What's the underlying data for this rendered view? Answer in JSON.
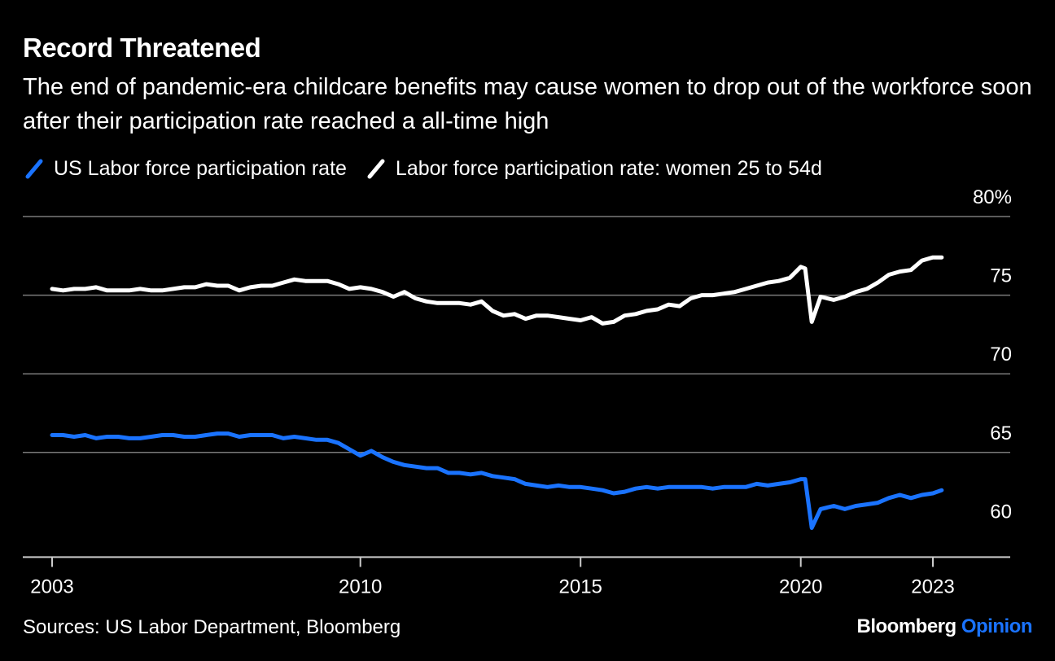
{
  "title": "Record Threatened",
  "subtitle": "The end of pandemic-era childcare benefits may cause women to drop out of the workforce soon after their participation rate reached a all-time high",
  "legend": [
    {
      "label": "US Labor force participation rate",
      "color": "#1a73ff"
    },
    {
      "label": "Labor force participation rate: women 25 to 54d",
      "color": "#ffffff"
    }
  ],
  "footer": {
    "source": "Sources: US Labor Department, Bloomberg",
    "brand_name": "Bloomberg",
    "brand_suffix": "Opinion",
    "brand_suffix_color": "#1a73ff"
  },
  "chart_data": {
    "type": "line",
    "xlabel": "",
    "ylabel": "",
    "x_ticks": [
      {
        "label": "2003",
        "value": 2003.0
      },
      {
        "label": "2010",
        "value": 2010.0
      },
      {
        "label": "2015",
        "value": 2015.0
      },
      {
        "label": "2020",
        "value": 2020.0
      },
      {
        "label": "2023",
        "value": 2023.0
      }
    ],
    "xlim": [
      2002.3,
      2024.8
    ],
    "y_ticks": [
      {
        "label": "80%",
        "value": 80
      },
      {
        "label": "75",
        "value": 75
      },
      {
        "label": "70",
        "value": 70
      },
      {
        "label": "65",
        "value": 65
      },
      {
        "label": "60",
        "value": 60
      }
    ],
    "ylim": [
      58.6,
      81.1
    ],
    "grid": true,
    "legend_position": "top-left",
    "series": [
      {
        "name": "US Labor force participation rate",
        "color": "#1a73ff",
        "points": [
          [
            2003.0,
            66.1
          ],
          [
            2003.25,
            66.1
          ],
          [
            2003.5,
            66.0
          ],
          [
            2003.75,
            66.1
          ],
          [
            2004.0,
            65.9
          ],
          [
            2004.25,
            66.0
          ],
          [
            2004.5,
            66.0
          ],
          [
            2004.75,
            65.9
          ],
          [
            2005.0,
            65.9
          ],
          [
            2005.25,
            66.0
          ],
          [
            2005.5,
            66.1
          ],
          [
            2005.75,
            66.1
          ],
          [
            2006.0,
            66.0
          ],
          [
            2006.25,
            66.0
          ],
          [
            2006.5,
            66.1
          ],
          [
            2006.75,
            66.2
          ],
          [
            2007.0,
            66.2
          ],
          [
            2007.25,
            66.0
          ],
          [
            2007.5,
            66.1
          ],
          [
            2007.75,
            66.1
          ],
          [
            2008.0,
            66.1
          ],
          [
            2008.25,
            65.9
          ],
          [
            2008.5,
            66.0
          ],
          [
            2008.75,
            65.9
          ],
          [
            2009.0,
            65.8
          ],
          [
            2009.25,
            65.8
          ],
          [
            2009.5,
            65.6
          ],
          [
            2009.75,
            65.2
          ],
          [
            2010.0,
            64.8
          ],
          [
            2010.25,
            65.1
          ],
          [
            2010.5,
            64.7
          ],
          [
            2010.75,
            64.4
          ],
          [
            2011.0,
            64.2
          ],
          [
            2011.25,
            64.1
          ],
          [
            2011.5,
            64.0
          ],
          [
            2011.75,
            64.0
          ],
          [
            2012.0,
            63.7
          ],
          [
            2012.25,
            63.7
          ],
          [
            2012.5,
            63.6
          ],
          [
            2012.75,
            63.7
          ],
          [
            2013.0,
            63.5
          ],
          [
            2013.25,
            63.4
          ],
          [
            2013.5,
            63.3
          ],
          [
            2013.75,
            63.0
          ],
          [
            2014.0,
            62.9
          ],
          [
            2014.25,
            62.8
          ],
          [
            2014.5,
            62.9
          ],
          [
            2014.75,
            62.8
          ],
          [
            2015.0,
            62.8
          ],
          [
            2015.25,
            62.7
          ],
          [
            2015.5,
            62.6
          ],
          [
            2015.75,
            62.4
          ],
          [
            2016.0,
            62.5
          ],
          [
            2016.25,
            62.7
          ],
          [
            2016.5,
            62.8
          ],
          [
            2016.75,
            62.7
          ],
          [
            2017.0,
            62.8
          ],
          [
            2017.25,
            62.8
          ],
          [
            2017.5,
            62.8
          ],
          [
            2017.75,
            62.8
          ],
          [
            2018.0,
            62.7
          ],
          [
            2018.25,
            62.8
          ],
          [
            2018.5,
            62.8
          ],
          [
            2018.75,
            62.8
          ],
          [
            2019.0,
            63.0
          ],
          [
            2019.25,
            62.9
          ],
          [
            2019.5,
            63.0
          ],
          [
            2019.75,
            63.1
          ],
          [
            2020.0,
            63.3
          ],
          [
            2020.1,
            63.3
          ],
          [
            2020.25,
            60.2
          ],
          [
            2020.45,
            61.4
          ],
          [
            2020.75,
            61.6
          ],
          [
            2021.0,
            61.4
          ],
          [
            2021.25,
            61.6
          ],
          [
            2021.5,
            61.7
          ],
          [
            2021.75,
            61.8
          ],
          [
            2022.0,
            62.1
          ],
          [
            2022.25,
            62.3
          ],
          [
            2022.5,
            62.1
          ],
          [
            2022.75,
            62.3
          ],
          [
            2023.0,
            62.4
          ],
          [
            2023.2,
            62.6
          ]
        ]
      },
      {
        "name": "Labor force participation rate: women 25 to 54d",
        "color": "#ffffff",
        "points": [
          [
            2003.0,
            75.4
          ],
          [
            2003.25,
            75.3
          ],
          [
            2003.5,
            75.4
          ],
          [
            2003.75,
            75.4
          ],
          [
            2004.0,
            75.5
          ],
          [
            2004.25,
            75.3
          ],
          [
            2004.5,
            75.3
          ],
          [
            2004.75,
            75.3
          ],
          [
            2005.0,
            75.4
          ],
          [
            2005.25,
            75.3
          ],
          [
            2005.5,
            75.3
          ],
          [
            2005.75,
            75.4
          ],
          [
            2006.0,
            75.5
          ],
          [
            2006.25,
            75.5
          ],
          [
            2006.5,
            75.7
          ],
          [
            2006.75,
            75.6
          ],
          [
            2007.0,
            75.6
          ],
          [
            2007.25,
            75.3
          ],
          [
            2007.5,
            75.5
          ],
          [
            2007.75,
            75.6
          ],
          [
            2008.0,
            75.6
          ],
          [
            2008.25,
            75.8
          ],
          [
            2008.5,
            76.0
          ],
          [
            2008.75,
            75.9
          ],
          [
            2009.0,
            75.9
          ],
          [
            2009.25,
            75.9
          ],
          [
            2009.5,
            75.7
          ],
          [
            2009.75,
            75.4
          ],
          [
            2010.0,
            75.5
          ],
          [
            2010.25,
            75.4
          ],
          [
            2010.5,
            75.2
          ],
          [
            2010.75,
            74.9
          ],
          [
            2011.0,
            75.2
          ],
          [
            2011.25,
            74.8
          ],
          [
            2011.5,
            74.6
          ],
          [
            2011.75,
            74.5
          ],
          [
            2012.0,
            74.5
          ],
          [
            2012.25,
            74.5
          ],
          [
            2012.5,
            74.4
          ],
          [
            2012.75,
            74.6
          ],
          [
            2013.0,
            74.0
          ],
          [
            2013.25,
            73.7
          ],
          [
            2013.5,
            73.8
          ],
          [
            2013.75,
            73.5
          ],
          [
            2014.0,
            73.7
          ],
          [
            2014.25,
            73.7
          ],
          [
            2014.5,
            73.6
          ],
          [
            2014.75,
            73.5
          ],
          [
            2015.0,
            73.4
          ],
          [
            2015.25,
            73.6
          ],
          [
            2015.5,
            73.2
          ],
          [
            2015.75,
            73.3
          ],
          [
            2016.0,
            73.7
          ],
          [
            2016.25,
            73.8
          ],
          [
            2016.5,
            74.0
          ],
          [
            2016.75,
            74.1
          ],
          [
            2017.0,
            74.4
          ],
          [
            2017.25,
            74.3
          ],
          [
            2017.5,
            74.8
          ],
          [
            2017.75,
            75.0
          ],
          [
            2018.0,
            75.0
          ],
          [
            2018.25,
            75.1
          ],
          [
            2018.5,
            75.2
          ],
          [
            2018.75,
            75.4
          ],
          [
            2019.0,
            75.6
          ],
          [
            2019.25,
            75.8
          ],
          [
            2019.5,
            75.9
          ],
          [
            2019.75,
            76.1
          ],
          [
            2020.0,
            76.8
          ],
          [
            2020.1,
            76.7
          ],
          [
            2020.25,
            73.3
          ],
          [
            2020.45,
            74.9
          ],
          [
            2020.75,
            74.7
          ],
          [
            2021.0,
            74.9
          ],
          [
            2021.25,
            75.2
          ],
          [
            2021.5,
            75.4
          ],
          [
            2021.75,
            75.8
          ],
          [
            2022.0,
            76.3
          ],
          [
            2022.25,
            76.5
          ],
          [
            2022.5,
            76.6
          ],
          [
            2022.75,
            77.2
          ],
          [
            2023.0,
            77.4
          ],
          [
            2023.2,
            77.4
          ]
        ]
      }
    ]
  }
}
